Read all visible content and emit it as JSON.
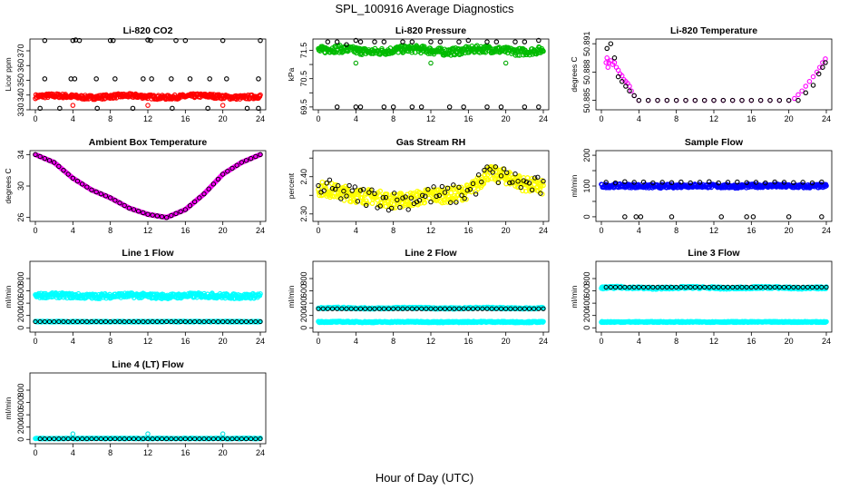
{
  "figure": {
    "title": "SPL_100916  Average Diagnostics",
    "xlabel": "Hour of Day (UTC)"
  },
  "chart_data": [
    {
      "type": "scatter",
      "title": "Li-820 CO2",
      "ylabel": "Licor ppm",
      "xlim": [
        0,
        24
      ],
      "ylim": [
        330,
        378
      ],
      "xticks": [
        0,
        4,
        8,
        12,
        16,
        20,
        24
      ],
      "yticks": [
        330,
        340,
        350,
        360,
        370
      ],
      "series": [
        {
          "name": "dense",
          "color": "#ff0000",
          "mode": "band",
          "start": 0,
          "end": 24,
          "center": 339,
          "wave": 0.6,
          "half": 1.4
        },
        {
          "name": "high outliers",
          "color": "#000000",
          "mode": "points",
          "x": [
            1,
            4,
            4.3,
            4.7,
            8,
            8.3,
            12,
            12.3,
            15,
            16,
            20,
            24
          ],
          "y": [
            377,
            377,
            378,
            377,
            377,
            377,
            378,
            377,
            377,
            377,
            377,
            377
          ]
        },
        {
          "name": "mid outliers",
          "color": "#000000",
          "mode": "points",
          "x": [
            1,
            3.8,
            4.2,
            6.5,
            8.5,
            11.5,
            12.4,
            14.5,
            16.5,
            18.6,
            20.4,
            23.8
          ],
          "y": [
            351,
            351,
            351,
            351,
            351,
            351,
            351,
            351,
            351,
            351,
            351,
            351
          ]
        },
        {
          "name": "low outliers",
          "color": "#000000",
          "mode": "points",
          "x": [
            0.5,
            2.6,
            6.6,
            10.4,
            14.6,
            18.4,
            22.6,
            23.8
          ],
          "y": [
            331,
            331,
            331,
            331,
            331,
            331,
            331,
            331
          ]
        },
        {
          "name": "spikes",
          "color": "#ff0000",
          "mode": "points",
          "x": [
            4,
            12,
            20
          ],
          "y": [
            333,
            333,
            333
          ]
        }
      ]
    },
    {
      "type": "scatter",
      "title": "Li-820 Pressure",
      "ylabel": "kPa",
      "xlim": [
        0,
        24
      ],
      "ylim": [
        69.4,
        71.9
      ],
      "xticks": [
        0,
        4,
        8,
        12,
        16,
        20,
        24
      ],
      "yticks": [
        69.5,
        70.0,
        70.5,
        71.0,
        71.5
      ],
      "ytick_labels": [
        "69.5",
        "",
        "70.5",
        "",
        "71.5"
      ],
      "series": [
        {
          "name": "dense",
          "color": "#00bb00",
          "mode": "band",
          "start": 0,
          "end": 24,
          "center": 71.5,
          "wave": 0.05,
          "half": 0.13
        },
        {
          "name": "upper scatter",
          "color": "#000000",
          "mode": "points",
          "x": [
            1,
            2,
            3,
            4,
            4.5,
            6,
            7,
            9,
            10,
            12,
            13,
            15,
            16,
            18,
            19,
            21,
            22,
            23.5
          ],
          "y": [
            71.8,
            71.8,
            71.7,
            71.85,
            71.8,
            71.8,
            71.8,
            71.8,
            71.8,
            71.8,
            71.8,
            71.8,
            71.85,
            71.8,
            71.8,
            71.8,
            71.8,
            71.85
          ]
        },
        {
          "name": "lower scatter",
          "color": "#000000",
          "mode": "points",
          "x": [
            2,
            4,
            4.5,
            7,
            8,
            10,
            11,
            14,
            15.5,
            18,
            19.5,
            22,
            23.5
          ],
          "y": [
            69.5,
            69.5,
            69.5,
            69.5,
            69.5,
            69.5,
            69.5,
            69.5,
            69.5,
            69.5,
            69.5,
            69.5,
            69.5
          ]
        },
        {
          "name": "green dips",
          "color": "#00aa00",
          "mode": "points",
          "x": [
            4,
            12,
            20
          ],
          "y": [
            71.05,
            71.05,
            71.05
          ]
        }
      ]
    },
    {
      "type": "scatter",
      "title": "Li-820 Temperature",
      "ylabel": "degrees C",
      "xlim": [
        0,
        24
      ],
      "ylim": [
        50.884,
        50.8915
      ],
      "xticks": [
        0,
        4,
        8,
        12,
        16,
        20,
        24
      ],
      "yticks": [
        50.885,
        50.888,
        50.891
      ],
      "series": [
        {
          "name": "magenta",
          "color": "#ff00ff",
          "mode": "points",
          "x": [
            0.5,
            0.6,
            0.7,
            0.8,
            1.0,
            1.2,
            1.4,
            1.6,
            1.8,
            2.0,
            2.2,
            2.4,
            2.6,
            2.8,
            3.0,
            3.2,
            3.5,
            4.0,
            5,
            6,
            7,
            8,
            9,
            10,
            11,
            12,
            13,
            14,
            15,
            16,
            17,
            18,
            19,
            20,
            20.6,
            21.0,
            21.4,
            21.8,
            22.2,
            22.6,
            23.0,
            23.3,
            23.6,
            23.9
          ],
          "y": [
            50.889,
            50.8895,
            50.8885,
            50.889,
            50.8892,
            50.8888,
            50.889,
            50.8885,
            50.8882,
            50.8878,
            50.8876,
            50.8872,
            50.887,
            50.8868,
            50.8865,
            50.886,
            50.8855,
            50.885,
            50.885,
            50.885,
            50.885,
            50.885,
            50.885,
            50.885,
            50.885,
            50.885,
            50.885,
            50.885,
            50.885,
            50.885,
            50.885,
            50.885,
            50.885,
            50.885,
            50.8852,
            50.8856,
            50.886,
            50.8865,
            50.887,
            50.8875,
            50.888,
            50.8885,
            50.889,
            50.8894
          ]
        },
        {
          "name": "black",
          "color": "#000000",
          "mode": "points",
          "x": [
            0.6,
            1.0,
            1.4,
            1.8,
            2.2,
            2.6,
            3.0,
            3.5,
            4,
            5,
            6,
            7,
            8,
            9,
            10,
            11,
            12,
            13,
            14,
            15,
            16,
            17,
            18,
            19,
            20,
            21,
            21.8,
            22.6,
            23.2,
            23.6,
            23.9
          ],
          "y": [
            50.8905,
            50.891,
            50.8895,
            50.8875,
            50.887,
            50.8865,
            50.886,
            50.8855,
            50.885,
            50.885,
            50.885,
            50.885,
            50.885,
            50.885,
            50.885,
            50.885,
            50.885,
            50.885,
            50.885,
            50.885,
            50.885,
            50.885,
            50.885,
            50.885,
            50.885,
            50.885,
            50.8858,
            50.8866,
            50.8878,
            50.8885,
            50.889
          ]
        }
      ]
    },
    {
      "type": "scatter",
      "title": "Ambient Box Temperature",
      "ylabel": "degrees C",
      "xlim": [
        0,
        24
      ],
      "ylim": [
        25.5,
        34.5
      ],
      "xticks": [
        0,
        4,
        8,
        12,
        16,
        20,
        24
      ],
      "yticks": [
        26,
        30,
        34
      ],
      "ytick_labels": [
        "26",
        "30",
        "34"
      ],
      "series": [
        {
          "name": "magenta",
          "color": "#ff00ff",
          "mode": "curve",
          "x": [
            0,
            2,
            4,
            6,
            8,
            10,
            12,
            14,
            16,
            18,
            20,
            22,
            24
          ],
          "y": [
            34.0,
            33.0,
            31.0,
            29.5,
            28.5,
            27.2,
            26.4,
            26.0,
            27.0,
            29.0,
            31.5,
            33.0,
            34.0
          ]
        },
        {
          "name": "black",
          "color": "#000000",
          "mode": "curve_points",
          "x": [
            0,
            2,
            4,
            6,
            8,
            10,
            12,
            14,
            16,
            18,
            20,
            22,
            24
          ],
          "y": [
            34.0,
            33.0,
            31.0,
            29.5,
            28.5,
            27.2,
            26.4,
            26.0,
            27.0,
            29.0,
            31.5,
            33.0,
            34.0
          ]
        }
      ]
    },
    {
      "type": "scatter",
      "title": "Gas Stream RH",
      "ylabel": "percent",
      "xlim": [
        0,
        24
      ],
      "ylim": [
        2.28,
        2.47
      ],
      "xticks": [
        0,
        4,
        8,
        12,
        16,
        20,
        24
      ],
      "yticks": [
        2.3,
        2.35,
        2.4,
        2.45
      ],
      "ytick_labels": [
        "2.30",
        "",
        "2.40",
        ""
      ],
      "series": [
        {
          "name": "yellow",
          "color": "#ffff00",
          "mode": "noisy",
          "x": [
            0,
            2,
            4,
            6,
            8,
            10,
            12,
            14,
            16,
            17,
            18,
            20,
            22,
            24
          ],
          "y": [
            2.37,
            2.36,
            2.35,
            2.345,
            2.335,
            2.34,
            2.35,
            2.35,
            2.36,
            2.38,
            2.41,
            2.4,
            2.38,
            2.37
          ],
          "spread": 0.02
        },
        {
          "name": "black",
          "color": "#000000",
          "mode": "noisy_points",
          "x": [
            0,
            2,
            4,
            6,
            8,
            10,
            12,
            14,
            16,
            17,
            18,
            20,
            22,
            24
          ],
          "y": [
            2.37,
            2.36,
            2.35,
            2.345,
            2.335,
            2.34,
            2.35,
            2.35,
            2.36,
            2.38,
            2.41,
            2.4,
            2.38,
            2.37
          ],
          "spread": 0.028
        }
      ]
    },
    {
      "type": "scatter",
      "title": "Sample Flow",
      "ylabel": "ml/min",
      "xlim": [
        0,
        24
      ],
      "ylim": [
        -15,
        215
      ],
      "xticks": [
        0,
        4,
        8,
        12,
        16,
        20,
        24
      ],
      "yticks": [
        0,
        50,
        100,
        150,
        200
      ],
      "ytick_labels": [
        "0",
        "",
        "100",
        "",
        "200"
      ],
      "series": [
        {
          "name": "blue",
          "color": "#0000ff",
          "mode": "band",
          "start": 0,
          "end": 24,
          "center": 100,
          "wave": 1,
          "half": 6
        },
        {
          "name": "black high",
          "color": "#000000",
          "mode": "points",
          "x": [
            0.5,
            1.5,
            2.5,
            3.5,
            4.5,
            5.5,
            6.5,
            7.5,
            8.5,
            9.5,
            10.5,
            11.5,
            12.5,
            13.5,
            14.5,
            15.5,
            16.5,
            17.5,
            18.5,
            19.5,
            20.5,
            21.5,
            22.5,
            23.5
          ],
          "y": [
            112,
            110,
            114,
            112,
            113,
            110,
            112,
            111,
            113,
            110,
            112,
            114,
            110,
            112,
            113,
            111,
            112,
            110,
            113,
            112,
            111,
            112,
            110,
            113
          ]
        },
        {
          "name": "black low",
          "color": "#000000",
          "mode": "points",
          "x": [
            2.5,
            3.7,
            4.2,
            7.5,
            12.8,
            15.5,
            16.2,
            20,
            23.5
          ],
          "y": [
            0,
            0,
            0,
            0,
            0,
            0,
            0,
            0,
            0
          ]
        }
      ]
    },
    {
      "type": "scatter",
      "title": "Line 1 Flow",
      "ylabel": "ml/min",
      "xlim": [
        0,
        24
      ],
      "ylim": [
        -70,
        1080
      ],
      "xticks": [
        0,
        4,
        8,
        12,
        16,
        20,
        24
      ],
      "yticks": [
        0,
        200,
        400,
        600,
        800
      ],
      "series": [
        {
          "name": "cyan main",
          "color": "#00ffff",
          "mode": "band",
          "start": 0,
          "end": 24,
          "center": 520,
          "wave": 8,
          "half": 40
        },
        {
          "name": "cyan lower",
          "color": "#00ffff",
          "mode": "band",
          "start": 0,
          "end": 24,
          "center": 100,
          "wave": 0,
          "half": 7
        },
        {
          "name": "black",
          "color": "#000000",
          "mode": "line_points",
          "start": 0,
          "end": 24,
          "value": 100
        }
      ]
    },
    {
      "type": "scatter",
      "title": "Line 2 Flow",
      "ylabel": "ml/min",
      "xlim": [
        0,
        24
      ],
      "ylim": [
        -70,
        1080
      ],
      "xticks": [
        0,
        4,
        8,
        12,
        16,
        20,
        24
      ],
      "yticks": [
        0,
        200,
        400,
        600,
        800
      ],
      "series": [
        {
          "name": "cyan upper",
          "color": "#00ffff",
          "mode": "band",
          "start": 0,
          "end": 24,
          "center": 320,
          "wave": 4,
          "half": 12
        },
        {
          "name": "cyan lower",
          "color": "#00ffff",
          "mode": "band",
          "start": 0,
          "end": 24,
          "center": 95,
          "wave": 2,
          "half": 10
        },
        {
          "name": "black",
          "color": "#000000",
          "mode": "line_points",
          "start": 0,
          "end": 24,
          "value": 310
        }
      ]
    },
    {
      "type": "scatter",
      "title": "Line 3 Flow",
      "ylabel": "ml/min",
      "xlim": [
        0,
        24
      ],
      "ylim": [
        -70,
        1080
      ],
      "xticks": [
        0,
        4,
        8,
        12,
        16,
        20,
        24
      ],
      "yticks": [
        0,
        200,
        400,
        600,
        800
      ],
      "series": [
        {
          "name": "cyan upper",
          "color": "#00ffff",
          "mode": "band",
          "start": 0,
          "end": 24,
          "center": 650,
          "wave": 6,
          "half": 18
        },
        {
          "name": "cyan lower",
          "color": "#00ffff",
          "mode": "band",
          "start": 0,
          "end": 24,
          "center": 95,
          "wave": 0,
          "half": 8
        },
        {
          "name": "black",
          "color": "#000000",
          "mode": "line_points",
          "start": 0.5,
          "end": 24,
          "value": 660
        }
      ]
    },
    {
      "type": "scatter",
      "title": "Line 4 (LT) Flow",
      "ylabel": "ml/min",
      "xlim": [
        0,
        24
      ],
      "ylim": [
        -70,
        1080
      ],
      "xticks": [
        0,
        4,
        8,
        12,
        16,
        20,
        24
      ],
      "yticks": [
        0,
        200,
        400,
        600,
        800
      ],
      "series": [
        {
          "name": "cyan",
          "color": "#00ffff",
          "mode": "band",
          "start": 0,
          "end": 24,
          "center": 15,
          "wave": 0,
          "half": 6
        },
        {
          "name": "cyan spikes",
          "color": "#00e0e0",
          "mode": "points",
          "x": [
            4,
            12,
            20
          ],
          "y": [
            90,
            90,
            90
          ]
        },
        {
          "name": "black",
          "color": "#000000",
          "mode": "line_points",
          "start": 0.5,
          "end": 24,
          "value": 10
        }
      ]
    }
  ]
}
